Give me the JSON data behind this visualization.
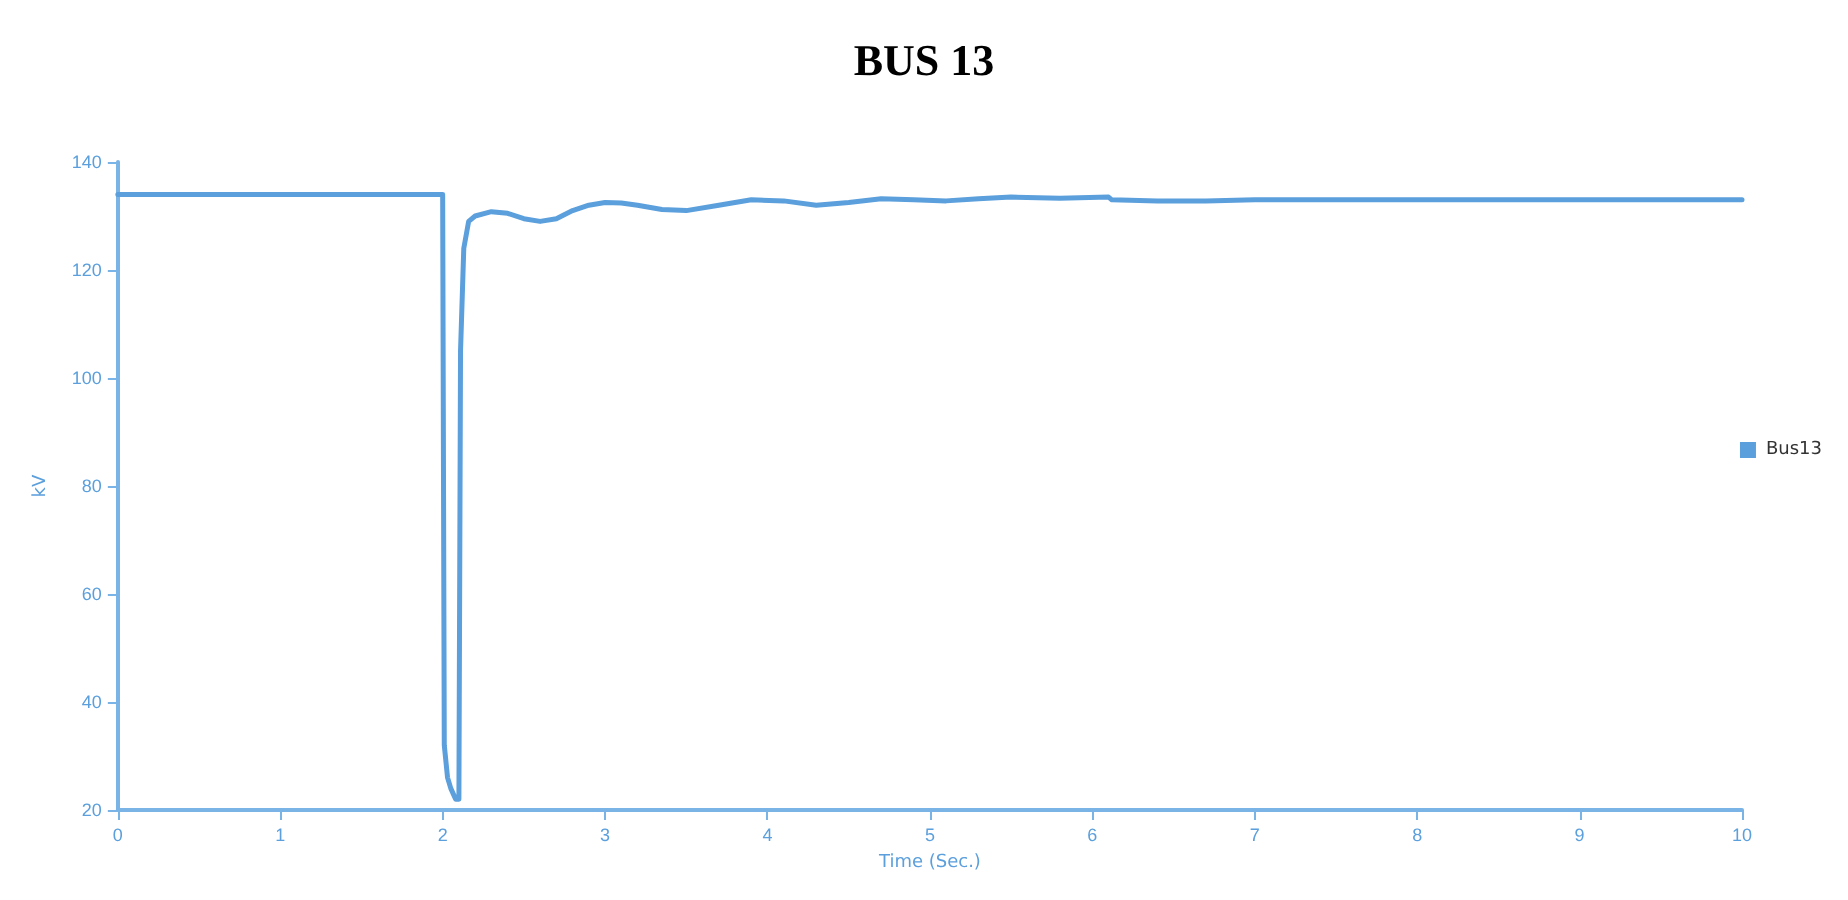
{
  "chart_data": {
    "type": "line",
    "title": "BUS 13",
    "xlabel": "Time (Sec.)",
    "ylabel": "kV",
    "x": [
      0,
      1,
      1.99,
      2.0,
      2.01,
      2.03,
      2.05,
      2.08,
      2.1,
      2.11,
      2.13,
      2.16,
      2.2,
      2.3,
      2.4,
      2.5,
      2.6,
      2.7,
      2.8,
      2.9,
      3.0,
      3.1,
      3.2,
      3.35,
      3.5,
      3.7,
      3.9,
      4.1,
      4.3,
      4.5,
      4.7,
      4.9,
      5.1,
      5.3,
      5.5,
      5.8,
      6.1,
      6.12,
      6.4,
      6.7,
      7,
      7.5,
      8,
      9,
      10
    ],
    "series": [
      {
        "name": "Bus13",
        "color": "#5b9fdc",
        "values": [
          134,
          134,
          134,
          134,
          32,
          26,
          24,
          22,
          22,
          105,
          124,
          129,
          130,
          130.8,
          130.5,
          129.5,
          129,
          129.5,
          131,
          132,
          132.5,
          132.4,
          132,
          131.2,
          131,
          132,
          133,
          132.8,
          132,
          132.5,
          133.2,
          133,
          132.8,
          133.2,
          133.5,
          133.3,
          133.5,
          133,
          132.8,
          132.8,
          133,
          133,
          133,
          133,
          133
        ]
      }
    ],
    "xlim": [
      0,
      10
    ],
    "xticks": [
      0,
      1,
      2,
      3,
      4,
      5,
      6,
      7,
      8,
      9,
      10
    ],
    "ylim": [
      20,
      140
    ],
    "yticks": [
      20,
      40,
      60,
      80,
      100,
      120,
      140
    ],
    "grid": false,
    "legend": "right",
    "marker": "none",
    "line_style": "solid"
  }
}
